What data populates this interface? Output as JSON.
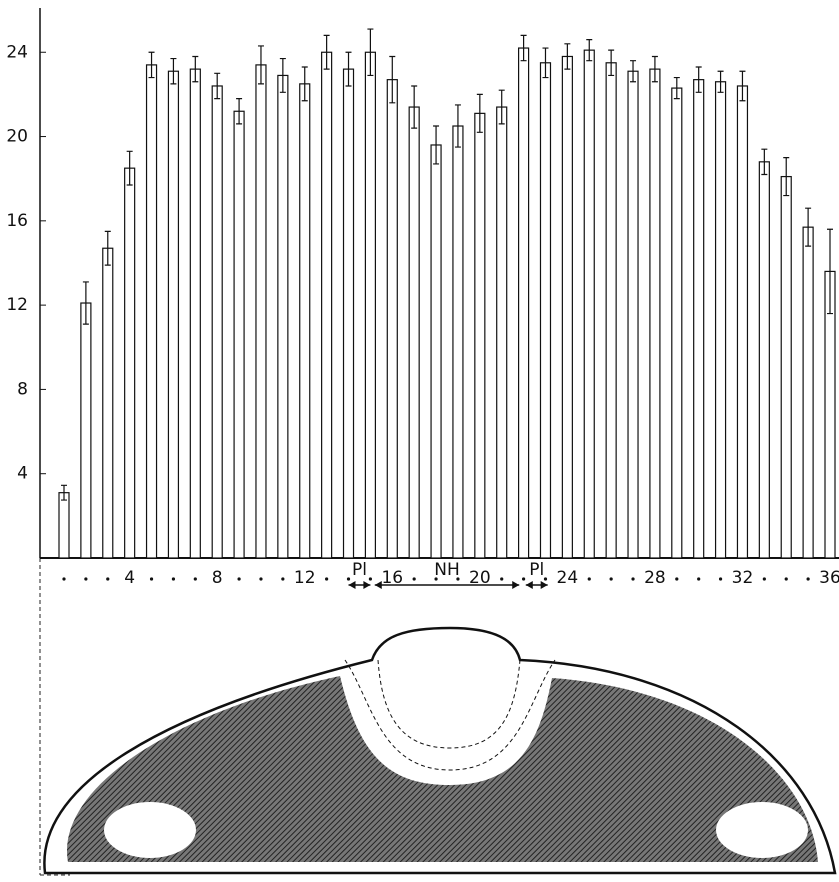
{
  "chart_data": {
    "type": "bar",
    "categories": [
      null,
      null,
      null,
      "4",
      null,
      null,
      null,
      "8",
      null,
      null,
      null,
      "12",
      null,
      null,
      null,
      "16",
      null,
      null,
      null,
      "20",
      null,
      null,
      null,
      "24",
      null,
      null,
      null,
      "28",
      null,
      null,
      null,
      "32",
      null,
      null,
      null,
      "36"
    ],
    "values": [
      3.1,
      12.1,
      14.7,
      18.5,
      23.4,
      23.1,
      23.2,
      22.4,
      21.2,
      23.4,
      22.9,
      22.5,
      24.0,
      23.2,
      24.0,
      22.7,
      21.4,
      19.6,
      20.5,
      21.1,
      21.4,
      24.2,
      23.5,
      23.8,
      24.1,
      23.5,
      23.1,
      23.2,
      22.3,
      22.7,
      22.6,
      22.4,
      18.8,
      18.1,
      15.7,
      13.6
    ],
    "errors": [
      0.35,
      1.0,
      0.8,
      0.8,
      0.6,
      0.6,
      0.6,
      0.6,
      0.6,
      0.9,
      0.8,
      0.8,
      0.8,
      0.8,
      1.1,
      1.1,
      1.0,
      0.9,
      1.0,
      0.9,
      0.8,
      0.6,
      0.7,
      0.6,
      0.5,
      0.6,
      0.5,
      0.6,
      0.5,
      0.6,
      0.5,
      0.7,
      0.6,
      0.9,
      0.9,
      2.0
    ],
    "color": "#ffffff",
    "ylim": [
      0,
      26.1
    ],
    "yticks": [
      4,
      8,
      12,
      16,
      20,
      24
    ],
    "annotations": [
      {
        "text": "Pl",
        "from": 14,
        "to": 15
      },
      {
        "text": "NH",
        "from": 15.2,
        "to": 21.8
      },
      {
        "text": "Pl",
        "from": 22.1,
        "to": 23.1
      }
    ]
  }
}
